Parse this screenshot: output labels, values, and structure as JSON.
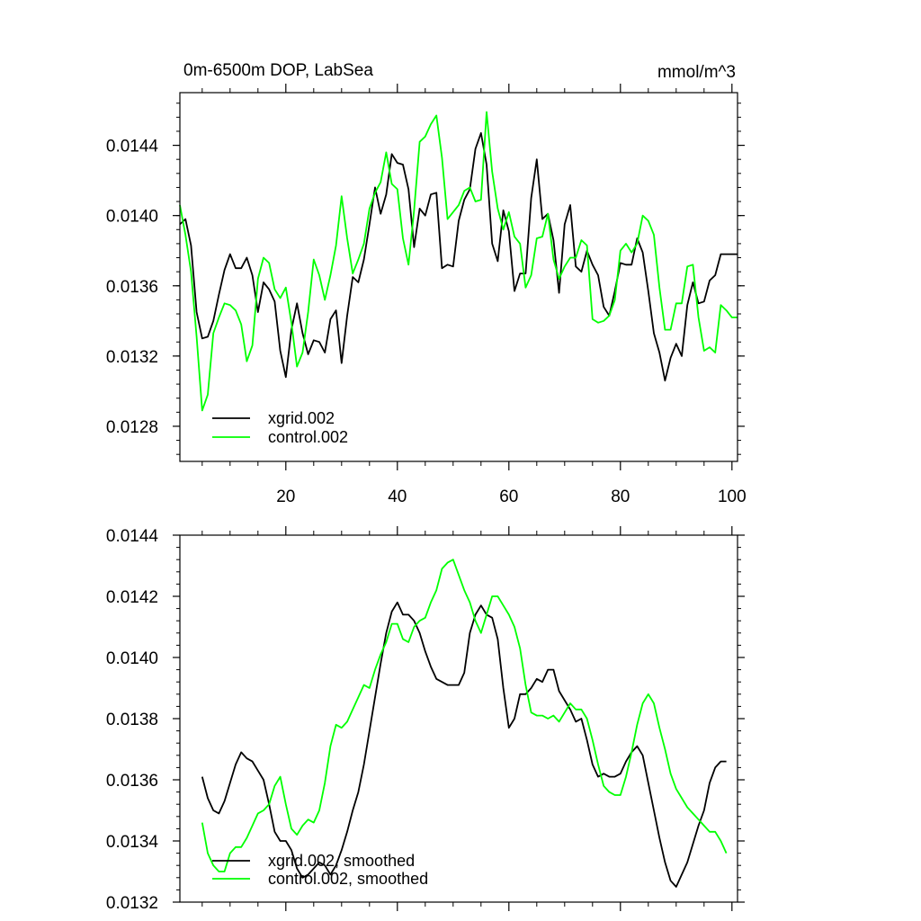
{
  "chart_data": [
    {
      "type": "line",
      "title": "0m-6500m DOP, LabSea",
      "units": "mmol/m^3",
      "xlim": [
        1,
        101
      ],
      "ylim": [
        0.0126,
        0.0147
      ],
      "x_ticks": [
        20,
        40,
        60,
        80,
        100
      ],
      "y_ticks": [
        0.0128,
        0.0132,
        0.0136,
        0.014,
        0.0144
      ],
      "x_tick_labels": [
        "20",
        "40",
        "60",
        "80",
        "100"
      ],
      "y_tick_labels": [
        "0.0128",
        "0.0132",
        "0.0136",
        "0.0140",
        "0.0144"
      ],
      "legend_position": "bottom-left",
      "x": [
        1,
        2,
        3,
        4,
        5,
        6,
        7,
        8,
        9,
        10,
        11,
        12,
        13,
        14,
        15,
        16,
        17,
        18,
        19,
        20,
        21,
        22,
        23,
        24,
        25,
        26,
        27,
        28,
        29,
        30,
        31,
        32,
        33,
        34,
        35,
        36,
        37,
        38,
        39,
        40,
        41,
        42,
        43,
        44,
        45,
        46,
        47,
        48,
        49,
        50,
        51,
        52,
        53,
        54,
        55,
        56,
        57,
        58,
        59,
        60,
        61,
        62,
        63,
        64,
        65,
        66,
        67,
        68,
        69,
        70,
        71,
        72,
        73,
        74,
        75,
        76,
        77,
        78,
        79,
        80,
        81,
        82,
        83,
        84,
        85,
        86,
        87,
        88,
        89,
        90,
        91,
        92,
        93,
        94,
        95,
        96,
        97,
        98,
        99,
        100,
        101
      ],
      "series": [
        {
          "name": "xgrid.002",
          "legend_label": "xgrid.002",
          "color": "#000000",
          "values": [
            0.01395,
            0.01398,
            0.01383,
            0.01345,
            0.0133,
            0.01331,
            0.0134,
            0.01355,
            0.01369,
            0.01378,
            0.0137,
            0.0137,
            0.01376,
            0.01366,
            0.01345,
            0.01362,
            0.01358,
            0.01351,
            0.01323,
            0.01308,
            0.01335,
            0.0135,
            0.01333,
            0.01321,
            0.01329,
            0.01328,
            0.01322,
            0.01341,
            0.01346,
            0.01316,
            0.01343,
            0.01365,
            0.01362,
            0.01375,
            0.01395,
            0.01416,
            0.01401,
            0.01412,
            0.01435,
            0.0143,
            0.01429,
            0.01415,
            0.01382,
            0.01404,
            0.014,
            0.01412,
            0.01413,
            0.0137,
            0.01372,
            0.01371,
            0.01397,
            0.01409,
            0.01415,
            0.01438,
            0.01447,
            0.01429,
            0.01384,
            0.01374,
            0.01403,
            0.01391,
            0.01357,
            0.01367,
            0.01367,
            0.0141,
            0.01432,
            0.01398,
            0.01401,
            0.01386,
            0.01356,
            0.01395,
            0.01406,
            0.01371,
            0.01368,
            0.0138,
            0.01372,
            0.01366,
            0.01348,
            0.01343,
            0.01357,
            0.01373,
            0.01372,
            0.01372,
            0.01387,
            0.01379,
            0.01357,
            0.01333,
            0.01322,
            0.01306,
            0.01319,
            0.01327,
            0.0132,
            0.01349,
            0.01362,
            0.0135,
            0.01351,
            0.01363,
            0.01366,
            0.01378,
            0.01378,
            0.01378,
            0.01378
          ]
        },
        {
          "name": "control.002",
          "legend_label": "control.002",
          "color": "#00ff00",
          "values": [
            0.01406,
            0.01389,
            0.01368,
            0.01331,
            0.01289,
            0.01298,
            0.01333,
            0.01342,
            0.0135,
            0.01349,
            0.01346,
            0.01338,
            0.01317,
            0.01326,
            0.01364,
            0.01376,
            0.01373,
            0.01358,
            0.01353,
            0.01359,
            0.01339,
            0.01314,
            0.01322,
            0.01345,
            0.01375,
            0.01366,
            0.01352,
            0.01366,
            0.01383,
            0.01411,
            0.01387,
            0.01367,
            0.01375,
            0.01384,
            0.01404,
            0.01413,
            0.01419,
            0.01436,
            0.01418,
            0.01415,
            0.01387,
            0.01372,
            0.01403,
            0.01442,
            0.01445,
            0.01452,
            0.01457,
            0.01433,
            0.01398,
            0.01402,
            0.01406,
            0.01414,
            0.01416,
            0.01408,
            0.01409,
            0.01459,
            0.01425,
            0.01404,
            0.01392,
            0.01402,
            0.01388,
            0.01384,
            0.01359,
            0.01366,
            0.01387,
            0.01388,
            0.01401,
            0.01375,
            0.01364,
            0.01371,
            0.01376,
            0.01376,
            0.01386,
            0.01383,
            0.01341,
            0.01339,
            0.0134,
            0.01343,
            0.01352,
            0.0138,
            0.01384,
            0.01379,
            0.01384,
            0.014,
            0.01397,
            0.01389,
            0.01359,
            0.01335,
            0.01335,
            0.0135,
            0.0135,
            0.01371,
            0.01372,
            0.01342,
            0.01323,
            0.01325,
            0.01322,
            0.01349,
            0.01346,
            0.01342,
            0.01342
          ]
        }
      ]
    },
    {
      "type": "line",
      "title": "",
      "xlim": [
        1,
        101
      ],
      "ylim": [
        0.0132,
        0.0144
      ],
      "x_ticks": [
        20,
        40,
        60,
        80,
        100
      ],
      "y_ticks": [
        0.0132,
        0.0134,
        0.0136,
        0.0138,
        0.014,
        0.0142,
        0.0144
      ],
      "y_tick_labels": [
        "0.0132",
        "0.0134",
        "0.0136",
        "0.0138",
        "0.0140",
        "0.0142",
        "0.0144"
      ],
      "legend_position": "bottom-left",
      "x": [
        5,
        6,
        7,
        8,
        9,
        10,
        11,
        12,
        13,
        14,
        15,
        16,
        17,
        18,
        19,
        20,
        21,
        22,
        23,
        24,
        25,
        26,
        27,
        28,
        29,
        30,
        31,
        32,
        33,
        34,
        35,
        36,
        37,
        38,
        39,
        40,
        41,
        42,
        43,
        44,
        45,
        46,
        47,
        48,
        49,
        50,
        51,
        52,
        53,
        54,
        55,
        56,
        57,
        58,
        59,
        60,
        61,
        62,
        63,
        64,
        65,
        66,
        67,
        68,
        69,
        70,
        71,
        72,
        73,
        74,
        75,
        76,
        77,
        78,
        79,
        80,
        81,
        82,
        83,
        84,
        85,
        86,
        87,
        88,
        89,
        90,
        91,
        92,
        93,
        94,
        95,
        96,
        97,
        98,
        99
      ],
      "series": [
        {
          "name": "xgrid.002, smoothed",
          "legend_label": "xgrid.002, smoothed",
          "color": "#000000",
          "values": [
            0.01361,
            0.01354,
            0.0135,
            0.01349,
            0.01353,
            0.01359,
            0.01365,
            0.01369,
            0.01367,
            0.01366,
            0.01363,
            0.0136,
            0.01352,
            0.01343,
            0.0134,
            0.0134,
            0.01337,
            0.01331,
            0.01328,
            0.01329,
            0.01331,
            0.01333,
            0.01332,
            0.01329,
            0.01332,
            0.01337,
            0.01343,
            0.0135,
            0.01356,
            0.01365,
            0.01376,
            0.01387,
            0.01398,
            0.01408,
            0.01415,
            0.01418,
            0.01414,
            0.01414,
            0.01412,
            0.01408,
            0.01402,
            0.01397,
            0.01393,
            0.01392,
            0.01391,
            0.01391,
            0.01391,
            0.01395,
            0.01408,
            0.01414,
            0.01417,
            0.01414,
            0.01413,
            0.01406,
            0.0139,
            0.01377,
            0.0138,
            0.01388,
            0.01388,
            0.0139,
            0.01393,
            0.01392,
            0.01396,
            0.01396,
            0.01389,
            0.01386,
            0.01383,
            0.01379,
            0.0138,
            0.01373,
            0.01365,
            0.01361,
            0.01362,
            0.01361,
            0.01361,
            0.01362,
            0.01366,
            0.01369,
            0.01371,
            0.01368,
            0.01359,
            0.0135,
            0.01341,
            0.01333,
            0.01327,
            0.01325,
            0.01329,
            0.01333,
            0.01339,
            0.01345,
            0.0135,
            0.01359,
            0.01364,
            0.01366,
            0.01366
          ]
        },
        {
          "name": "control.002, smoothed",
          "legend_label": "control.002, smoothed",
          "color": "#00ff00",
          "values": [
            0.01346,
            0.01336,
            0.01332,
            0.0133,
            0.0133,
            0.01336,
            0.01338,
            0.01338,
            0.01341,
            0.01345,
            0.01349,
            0.0135,
            0.01352,
            0.01358,
            0.01361,
            0.01352,
            0.01344,
            0.01342,
            0.01345,
            0.01347,
            0.01346,
            0.0135,
            0.01359,
            0.01371,
            0.01378,
            0.01377,
            0.01379,
            0.01383,
            0.01387,
            0.01391,
            0.0139,
            0.01396,
            0.01401,
            0.01405,
            0.01411,
            0.01411,
            0.01406,
            0.01405,
            0.0141,
            0.01412,
            0.01413,
            0.01418,
            0.01422,
            0.01429,
            0.01431,
            0.01432,
            0.01427,
            0.01422,
            0.01418,
            0.01412,
            0.01408,
            0.01414,
            0.0142,
            0.0142,
            0.01417,
            0.01414,
            0.0141,
            0.01403,
            0.01391,
            0.01382,
            0.01381,
            0.01381,
            0.0138,
            0.01381,
            0.01379,
            0.01382,
            0.01385,
            0.01383,
            0.01383,
            0.0138,
            0.01373,
            0.01365,
            0.01358,
            0.01356,
            0.01355,
            0.01355,
            0.01361,
            0.01369,
            0.01378,
            0.01385,
            0.01388,
            0.01385,
            0.01377,
            0.0137,
            0.01362,
            0.01357,
            0.01354,
            0.01351,
            0.01349,
            0.01347,
            0.01345,
            0.01343,
            0.01343,
            0.0134,
            0.01336
          ]
        }
      ]
    }
  ]
}
